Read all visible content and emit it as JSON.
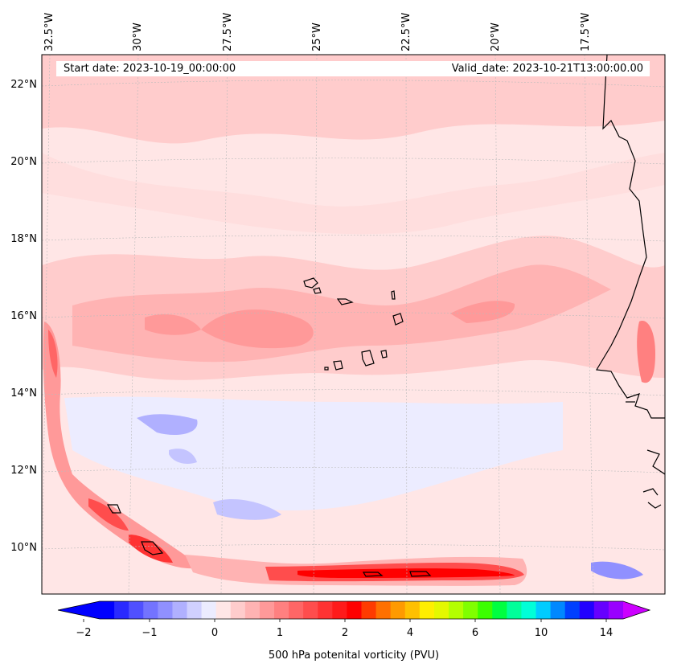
{
  "map": {
    "start_date": "Start date: 2023-10-19_00:00:00",
    "valid_date": "Valid_date: 2023-10-21T13:00:00.00",
    "lon_labels": [
      "32.5°W",
      "30°W",
      "27.5°W",
      "25°W",
      "22.5°W",
      "20°W",
      "17.5°W"
    ],
    "lat_labels": [
      "22°N",
      "20°N",
      "18°N",
      "16°N",
      "14°N",
      "12°N",
      "10°N"
    ]
  },
  "colorbar": {
    "label": "500 hPa potenital vorticity (PVU)",
    "tick_labels": [
      "−2",
      "−1",
      "0",
      "1",
      "2",
      "4",
      "6",
      "10",
      "14"
    ],
    "colors": [
      "#0000ff",
      "#2a2aff",
      "#5050ff",
      "#7373ff",
      "#9090ff",
      "#b0b0ff",
      "#d0d0ff",
      "#ececff",
      "#ffe6e6",
      "#ffcccc",
      "#ffb3b3",
      "#ff9999",
      "#ff8080",
      "#ff6666",
      "#ff4d4d",
      "#ff3333",
      "#ff1a1a",
      "#ff0000",
      "#ff3b00",
      "#ff7000",
      "#ff9a00",
      "#ffc000",
      "#ffee00",
      "#e4f800",
      "#b4ff00",
      "#80ff00",
      "#3cff00",
      "#00ff40",
      "#00ff9a",
      "#00ffd8",
      "#00ccff",
      "#0088ff",
      "#0040ff",
      "#2200ff",
      "#6600ff",
      "#9900ff"
    ],
    "under_color": "#0000ff",
    "over_color": "#cc00ff"
  }
}
